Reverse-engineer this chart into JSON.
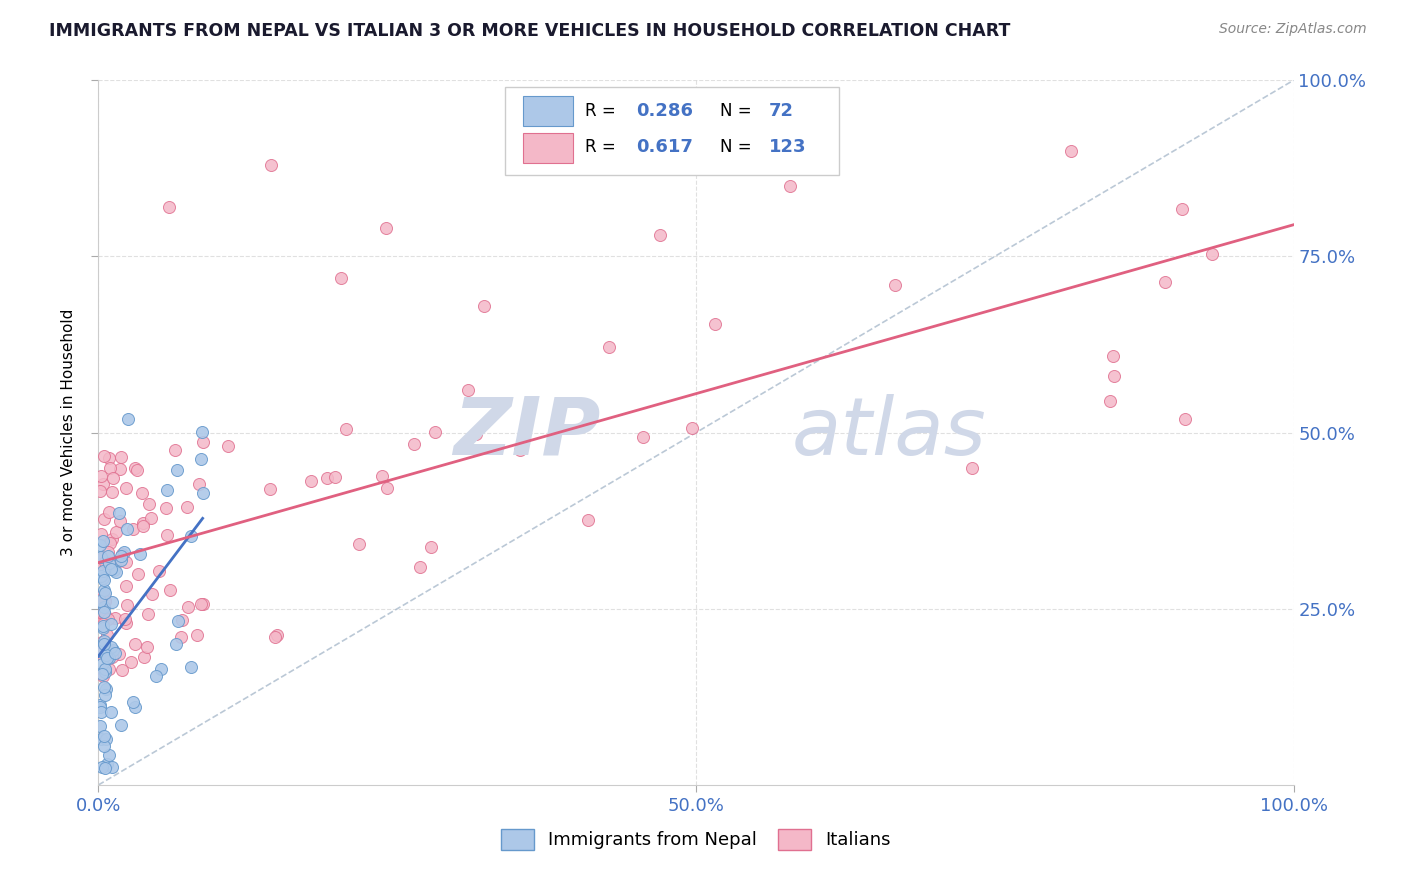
{
  "title": "IMMIGRANTS FROM NEPAL VS ITALIAN 3 OR MORE VEHICLES IN HOUSEHOLD CORRELATION CHART",
  "source": "Source: ZipAtlas.com",
  "ylabel": "3 or more Vehicles in Household",
  "xlim": [
    0,
    1.0
  ],
  "ylim": [
    0,
    1.0
  ],
  "legend_labels": [
    "Immigrants from Nepal",
    "Italians"
  ],
  "legend_R": [
    "0.286",
    "0.617"
  ],
  "legend_N": [
    "72",
    "123"
  ],
  "blue_fill": "#adc8e8",
  "blue_edge": "#6699cc",
  "pink_fill": "#f4b8c8",
  "pink_edge": "#e07090",
  "blue_line": "#4472c4",
  "pink_line": "#e06080",
  "watermark_color": "#d0d8e8",
  "tick_color": "#4472c4",
  "grid_color": "#cccccc",
  "title_color": "#1a1a2e",
  "source_color": "#888888"
}
